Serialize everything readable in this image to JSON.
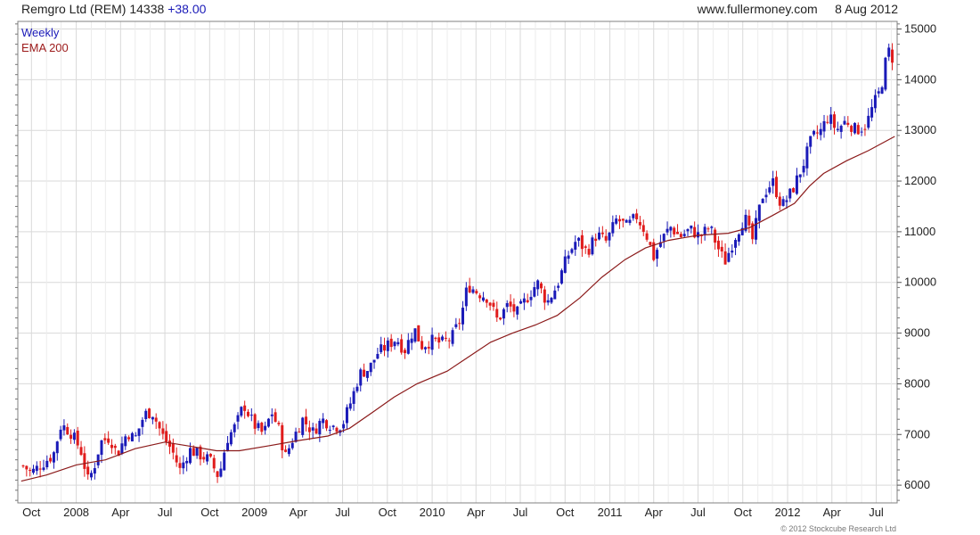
{
  "header": {
    "title": "Remgro Ltd (REM) 14338",
    "change": "+38.00",
    "site": "www.fullermoney.com",
    "date": "8 Aug 2012"
  },
  "legend": [
    "Weekly",
    "EMA 200"
  ],
  "copyright": "© 2012 Stockcube Research Ltd",
  "colors": {
    "up": "#1a1ab8",
    "down": "#e01c1c",
    "ema": "#8b1a1a",
    "grid": "#d9d9d9"
  },
  "chart_data": {
    "type": "line",
    "title": "Remgro Ltd (REM) 14338 +38.00",
    "xlabel": "",
    "ylabel": "",
    "ylim": [
      5650,
      15150
    ],
    "yticks": [
      6000,
      7000,
      8000,
      9000,
      10000,
      11000,
      12000,
      13000,
      14000,
      15000
    ],
    "xlim": [
      "2007-09-03",
      "2012-08-13"
    ],
    "xticks": [
      {
        "label": "Oct",
        "date": "2007-10-01"
      },
      {
        "label": "2008",
        "date": "2008-01-01"
      },
      {
        "label": "Apr",
        "date": "2008-04-01"
      },
      {
        "label": "Jul",
        "date": "2008-07-01"
      },
      {
        "label": "Oct",
        "date": "2008-10-01"
      },
      {
        "label": "2009",
        "date": "2009-01-01"
      },
      {
        "label": "Apr",
        "date": "2009-04-01"
      },
      {
        "label": "Jul",
        "date": "2009-07-01"
      },
      {
        "label": "Oct",
        "date": "2009-10-01"
      },
      {
        "label": "2010",
        "date": "2010-01-01"
      },
      {
        "label": "Apr",
        "date": "2010-04-01"
      },
      {
        "label": "Jul",
        "date": "2010-07-01"
      },
      {
        "label": "Oct",
        "date": "2010-10-01"
      },
      {
        "label": "2011",
        "date": "2011-01-01"
      },
      {
        "label": "Apr",
        "date": "2011-04-01"
      },
      {
        "label": "Jul",
        "date": "2011-07-01"
      },
      {
        "label": "Oct",
        "date": "2011-10-01"
      },
      {
        "label": "2012",
        "date": "2012-01-01"
      },
      {
        "label": "Apr",
        "date": "2012-04-01"
      },
      {
        "label": "Jul",
        "date": "2012-07-01"
      }
    ],
    "grid": true,
    "legend_position": "top-left",
    "series": [
      {
        "name": "Weekly",
        "kind": "candlestick",
        "close_path": [
          [
            "2007-09-14",
            6380
          ],
          [
            "2007-10-01",
            6250
          ],
          [
            "2007-10-20",
            6400
          ],
          [
            "2007-11-15",
            6600
          ],
          [
            "2007-12-01",
            7200
          ],
          [
            "2007-12-20",
            7050
          ],
          [
            "2008-01-10",
            6700
          ],
          [
            "2008-01-25",
            6100
          ],
          [
            "2008-02-05",
            6300
          ],
          [
            "2008-02-20",
            6850
          ],
          [
            "2008-03-10",
            6950
          ],
          [
            "2008-03-25",
            6600
          ],
          [
            "2008-04-15",
            7050
          ],
          [
            "2008-04-30",
            6900
          ],
          [
            "2008-05-20",
            7400
          ],
          [
            "2008-06-05",
            7450
          ],
          [
            "2008-06-25",
            7000
          ],
          [
            "2008-07-15",
            6700
          ],
          [
            "2008-08-01",
            6300
          ],
          [
            "2008-08-20",
            6700
          ],
          [
            "2008-09-10",
            6600
          ],
          [
            "2008-10-01",
            6500
          ],
          [
            "2008-10-20",
            6150
          ],
          [
            "2008-11-05",
            6900
          ],
          [
            "2008-11-25",
            7200
          ],
          [
            "2008-12-10",
            7600
          ],
          [
            "2008-12-30",
            7200
          ],
          [
            "2009-01-20",
            7000
          ],
          [
            "2009-02-05",
            7450
          ],
          [
            "2009-02-20",
            7100
          ],
          [
            "2009-03-05",
            6550
          ],
          [
            "2009-03-20",
            6900
          ],
          [
            "2009-04-10",
            7300
          ],
          [
            "2009-05-01",
            7050
          ],
          [
            "2009-05-20",
            7300
          ],
          [
            "2009-06-15",
            7150
          ],
          [
            "2009-07-01",
            7200
          ],
          [
            "2009-07-20",
            7700
          ],
          [
            "2009-08-05",
            8200
          ],
          [
            "2009-08-25",
            8300
          ],
          [
            "2009-09-10",
            8600
          ],
          [
            "2009-10-01",
            8750
          ],
          [
            "2009-10-20",
            8900
          ],
          [
            "2009-11-05",
            8650
          ],
          [
            "2009-11-25",
            9100
          ],
          [
            "2009-12-10",
            8750
          ],
          [
            "2010-01-01",
            8850
          ],
          [
            "2010-01-20",
            8800
          ],
          [
            "2010-02-10",
            8900
          ],
          [
            "2010-03-01",
            9300
          ],
          [
            "2010-03-15",
            9950
          ],
          [
            "2010-04-05",
            9800
          ],
          [
            "2010-04-25",
            9700
          ],
          [
            "2010-05-15",
            9250
          ],
          [
            "2010-06-05",
            9550
          ],
          [
            "2010-06-25",
            9400
          ],
          [
            "2010-07-15",
            9700
          ],
          [
            "2010-08-05",
            10000
          ],
          [
            "2010-08-25",
            9600
          ],
          [
            "2010-09-15",
            9950
          ],
          [
            "2010-10-05",
            10500
          ],
          [
            "2010-10-25",
            10850
          ],
          [
            "2010-11-15",
            10600
          ],
          [
            "2010-12-05",
            10950
          ],
          [
            "2010-12-25",
            10800
          ],
          [
            "2011-01-15",
            11250
          ],
          [
            "2011-02-05",
            11100
          ],
          [
            "2011-02-25",
            11300
          ],
          [
            "2011-03-15",
            11000
          ],
          [
            "2011-04-01",
            10500
          ],
          [
            "2011-04-15",
            10800
          ],
          [
            "2011-05-05",
            11100
          ],
          [
            "2011-05-25",
            10900
          ],
          [
            "2011-06-15",
            11050
          ],
          [
            "2011-07-05",
            10900
          ],
          [
            "2011-07-25",
            11100
          ],
          [
            "2011-08-10",
            10700
          ],
          [
            "2011-08-25",
            10400
          ],
          [
            "2011-09-15",
            10900
          ],
          [
            "2011-10-05",
            11300
          ],
          [
            "2011-10-20",
            10800
          ],
          [
            "2011-11-10",
            11700
          ],
          [
            "2011-12-01",
            12000
          ],
          [
            "2011-12-20",
            11500
          ],
          [
            "2012-01-10",
            11800
          ],
          [
            "2012-02-01",
            12300
          ],
          [
            "2012-02-20",
            12850
          ],
          [
            "2012-03-10",
            13000
          ],
          [
            "2012-03-25",
            13300
          ],
          [
            "2012-04-10",
            13000
          ],
          [
            "2012-05-01",
            13200
          ],
          [
            "2012-05-20",
            13000
          ],
          [
            "2012-06-10",
            13100
          ],
          [
            "2012-06-25",
            13500
          ],
          [
            "2012-07-10",
            13800
          ],
          [
            "2012-07-25",
            14600
          ],
          [
            "2012-08-08",
            14338
          ]
        ]
      },
      {
        "name": "EMA 200",
        "kind": "line",
        "points": [
          [
            "2007-09-10",
            6080
          ],
          [
            "2007-11-01",
            6200
          ],
          [
            "2008-01-01",
            6400
          ],
          [
            "2008-03-01",
            6500
          ],
          [
            "2008-05-01",
            6720
          ],
          [
            "2008-07-01",
            6850
          ],
          [
            "2008-08-15",
            6780
          ],
          [
            "2008-10-15",
            6680
          ],
          [
            "2008-12-01",
            6680
          ],
          [
            "2009-02-01",
            6780
          ],
          [
            "2009-04-01",
            6880
          ],
          [
            "2009-06-01",
            6970
          ],
          [
            "2009-07-15",
            7120
          ],
          [
            "2009-09-01",
            7440
          ],
          [
            "2009-10-15",
            7740
          ],
          [
            "2009-12-01",
            8000
          ],
          [
            "2010-02-01",
            8250
          ],
          [
            "2010-03-15",
            8520
          ],
          [
            "2010-05-01",
            8820
          ],
          [
            "2010-06-15",
            9000
          ],
          [
            "2010-08-01",
            9160
          ],
          [
            "2010-09-15",
            9350
          ],
          [
            "2010-11-01",
            9700
          ],
          [
            "2010-12-15",
            10100
          ],
          [
            "2011-02-01",
            10450
          ],
          [
            "2011-03-15",
            10680
          ],
          [
            "2011-05-01",
            10830
          ],
          [
            "2011-07-01",
            10930
          ],
          [
            "2011-09-01",
            10970
          ],
          [
            "2011-10-15",
            11080
          ],
          [
            "2011-12-01",
            11320
          ],
          [
            "2012-01-15",
            11560
          ],
          [
            "2012-02-15",
            11900
          ],
          [
            "2012-03-15",
            12150
          ],
          [
            "2012-05-01",
            12400
          ],
          [
            "2012-06-15",
            12600
          ],
          [
            "2012-08-08",
            12880
          ]
        ]
      }
    ]
  }
}
